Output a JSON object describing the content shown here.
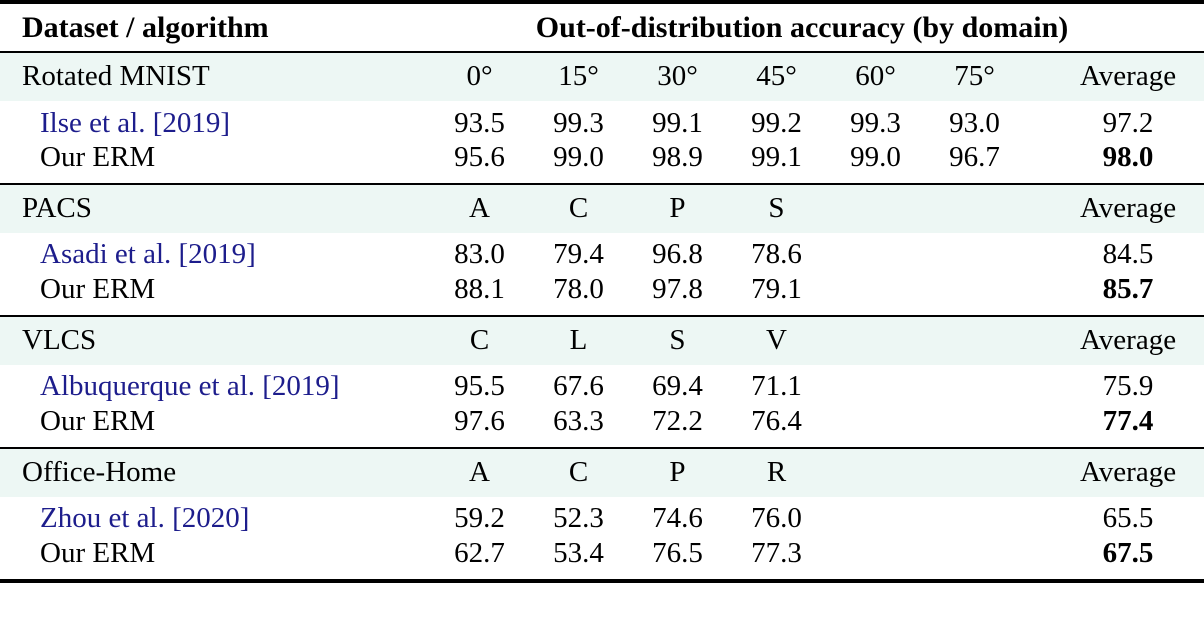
{
  "table": {
    "title_col_header": "Dataset / algorithm",
    "value_col_header": "Out-of-distribution accuracy (by domain)",
    "colors": {
      "band_background": "#edf7f4",
      "citation_link": "#1d1d8c",
      "text": "#000000",
      "rule": "#000000"
    },
    "sections": [
      {
        "dataset": "Rotated MNIST",
        "domains": [
          "0°",
          "15°",
          "30°",
          "45°",
          "60°",
          "75°"
        ],
        "average_label": "Average",
        "rows": [
          {
            "method": "Ilse et al. [2019]",
            "values": [
              "93.5",
              "99.3",
              "99.1",
              "99.2",
              "99.3",
              "93.0"
            ],
            "average": "97.2"
          },
          {
            "method": "Our ERM",
            "values": [
              "95.6",
              "99.0",
              "98.9",
              "99.1",
              "99.0",
              "96.7"
            ],
            "average": "98.0"
          }
        ]
      },
      {
        "dataset": "PACS",
        "domains": [
          "A",
          "C",
          "P",
          "S",
          "",
          ""
        ],
        "average_label": "Average",
        "rows": [
          {
            "method": "Asadi et al. [2019]",
            "values": [
              "83.0",
              "79.4",
              "96.8",
              "78.6",
              "",
              ""
            ],
            "average": "84.5"
          },
          {
            "method": "Our ERM",
            "values": [
              "88.1",
              "78.0",
              "97.8",
              "79.1",
              "",
              ""
            ],
            "average": "85.7"
          }
        ]
      },
      {
        "dataset": "VLCS",
        "domains": [
          "C",
          "L",
          "S",
          "V",
          "",
          ""
        ],
        "average_label": "Average",
        "rows": [
          {
            "method": "Albuquerque et al. [2019]",
            "values": [
              "95.5",
              "67.6",
              "69.4",
              "71.1",
              "",
              ""
            ],
            "average": "75.9"
          },
          {
            "method": "Our ERM",
            "values": [
              "97.6",
              "63.3",
              "72.2",
              "76.4",
              "",
              ""
            ],
            "average": "77.4"
          }
        ]
      },
      {
        "dataset": "Office-Home",
        "domains": [
          "A",
          "C",
          "P",
          "R",
          "",
          ""
        ],
        "average_label": "Average",
        "rows": [
          {
            "method": "Zhou et al. [2020]",
            "values": [
              "59.2",
              "52.3",
              "74.6",
              "76.0",
              "",
              ""
            ],
            "average": "65.5"
          },
          {
            "method": "Our ERM",
            "values": [
              "62.7",
              "53.4",
              "76.5",
              "77.3",
              "",
              ""
            ],
            "average": "67.5"
          }
        ]
      }
    ]
  },
  "chart_data": {
    "type": "table",
    "title": "Out-of-distribution accuracy (by domain)",
    "row_header": "Dataset / algorithm",
    "groups": [
      {
        "dataset": "Rotated MNIST",
        "columns": [
          "0°",
          "15°",
          "30°",
          "45°",
          "60°",
          "75°",
          "Average"
        ],
        "series": [
          {
            "name": "Ilse et al. [2019]",
            "values": [
              93.5,
              99.3,
              99.1,
              99.2,
              99.3,
              93.0,
              97.2
            ]
          },
          {
            "name": "Our ERM",
            "values": [
              95.6,
              99.0,
              98.9,
              99.1,
              99.0,
              96.7,
              98.0
            ],
            "average_bold": true
          }
        ]
      },
      {
        "dataset": "PACS",
        "columns": [
          "A",
          "C",
          "P",
          "S",
          "Average"
        ],
        "series": [
          {
            "name": "Asadi et al. [2019]",
            "values": [
              83.0,
              79.4,
              96.8,
              78.6,
              84.5
            ]
          },
          {
            "name": "Our ERM",
            "values": [
              88.1,
              78.0,
              97.8,
              79.1,
              85.7
            ],
            "average_bold": true
          }
        ]
      },
      {
        "dataset": "VLCS",
        "columns": [
          "C",
          "L",
          "S",
          "V",
          "Average"
        ],
        "series": [
          {
            "name": "Albuquerque et al. [2019]",
            "values": [
              95.5,
              67.6,
              69.4,
              71.1,
              75.9
            ]
          },
          {
            "name": "Our ERM",
            "values": [
              97.6,
              63.3,
              72.2,
              76.4,
              77.4
            ],
            "average_bold": true
          }
        ]
      },
      {
        "dataset": "Office-Home",
        "columns": [
          "A",
          "C",
          "P",
          "R",
          "Average"
        ],
        "series": [
          {
            "name": "Zhou et al. [2020]",
            "values": [
              59.2,
              52.3,
              74.6,
              76.0,
              65.5
            ]
          },
          {
            "name": "Our ERM",
            "values": [
              62.7,
              53.4,
              76.5,
              77.3,
              67.5
            ],
            "average_bold": true
          }
        ]
      }
    ]
  }
}
